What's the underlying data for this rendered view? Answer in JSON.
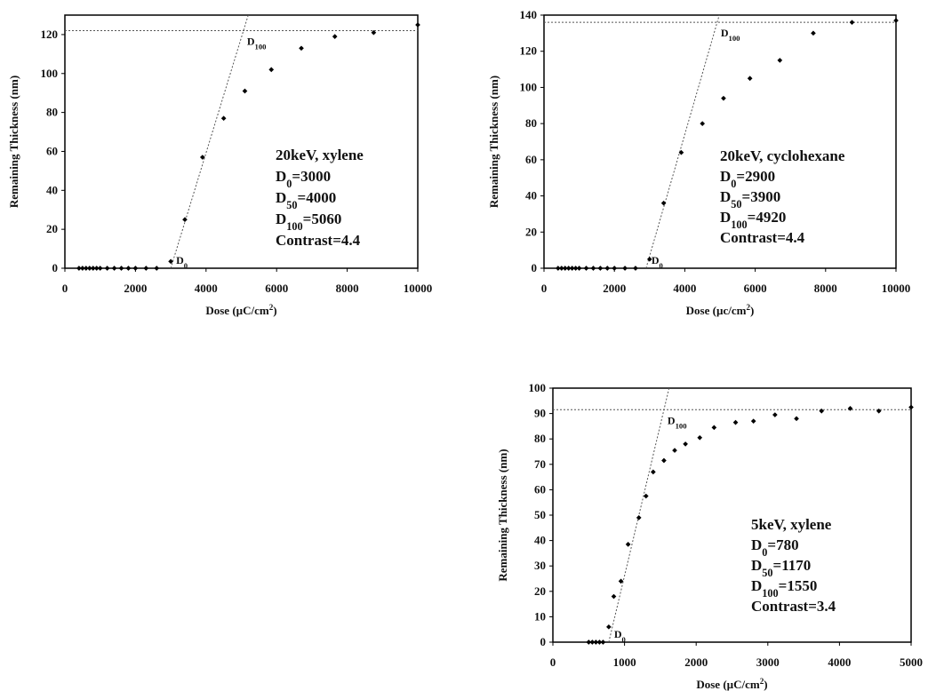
{
  "chart_data": [
    {
      "type": "scatter",
      "xlabel": "Dose (µC/cm²)",
      "ylabel": "Remaining Thickness (nm)",
      "xlim": [
        0,
        10000
      ],
      "ylim": [
        0,
        130
      ],
      "xticks": [
        0,
        2000,
        4000,
        6000,
        8000,
        10000
      ],
      "yticks": [
        0,
        20,
        40,
        60,
        80,
        100,
        120
      ],
      "x": [
        400,
        500,
        600,
        700,
        800,
        900,
        1000,
        1200,
        1400,
        1600,
        1800,
        2000,
        2300,
        2600,
        3000,
        3400,
        3900,
        4500,
        5100,
        5850,
        6700,
        7650,
        8750,
        10000
      ],
      "y": [
        0,
        0,
        0,
        0,
        0,
        0,
        0,
        0,
        0,
        0,
        0,
        0,
        0,
        0,
        3.5,
        25,
        57,
        77,
        91,
        102,
        113,
        119,
        121,
        125
      ],
      "annotations": [
        "20keV, xylene",
        "D0=3000",
        "D50=4000",
        "D100=5060",
        "Contrast=4.4"
      ],
      "d0_label": "D0",
      "d100_label": "D100",
      "fit_line": {
        "x0": 3000,
        "x100": 5060,
        "plateau": 122
      }
    },
    {
      "type": "scatter",
      "xlabel": "Dose (µc/cm²)",
      "ylabel": "Remaining Thickness (nm)",
      "xlim": [
        0,
        10000
      ],
      "ylim": [
        0,
        140
      ],
      "xticks": [
        0,
        2000,
        4000,
        6000,
        8000,
        10000
      ],
      "yticks": [
        0,
        20,
        40,
        60,
        80,
        100,
        120,
        140
      ],
      "x": [
        400,
        500,
        600,
        700,
        800,
        900,
        1000,
        1200,
        1400,
        1600,
        1800,
        2000,
        2300,
        2600,
        3000,
        3400,
        3900,
        4500,
        5100,
        5850,
        6700,
        7650,
        8750,
        10000
      ],
      "y": [
        0,
        0,
        0,
        0,
        0,
        0,
        0,
        0,
        0,
        0,
        0,
        0,
        0,
        0,
        5,
        36,
        64,
        80,
        94,
        105,
        115,
        130,
        136,
        137
      ],
      "annotations": [
        "20keV, cyclohexane",
        "D0=2900",
        "D50=3900",
        "D100=4920",
        "Contrast=4.4"
      ],
      "d0_label": "D0",
      "d100_label": "D100",
      "fit_line": {
        "x0": 2900,
        "x100": 4920,
        "plateau": 136
      }
    },
    {
      "type": "scatter",
      "xlabel": "Dose (µC/cm²)",
      "ylabel": "Remaining Thickness (nm)",
      "xlim": [
        0,
        5000
      ],
      "ylim": [
        0,
        100
      ],
      "xticks": [
        0,
        1000,
        2000,
        3000,
        4000,
        5000
      ],
      "yticks": [
        0,
        10,
        20,
        30,
        40,
        50,
        60,
        70,
        80,
        90,
        100
      ],
      "x": [
        500,
        550,
        600,
        650,
        700,
        780,
        850,
        950,
        1050,
        1200,
        1300,
        1400,
        1550,
        1700,
        1850,
        2050,
        2250,
        2550,
        2800,
        3100,
        3400,
        3750,
        4150,
        4550,
        5000
      ],
      "y": [
        0,
        0,
        0,
        0,
        0,
        6,
        18,
        24,
        38.5,
        49,
        57.5,
        67,
        71.5,
        75.5,
        78,
        80.5,
        84.5,
        86.5,
        87,
        89.5,
        88,
        91,
        92,
        91,
        92.5
      ],
      "annotations": [
        "5keV, xylene",
        "D0=780",
        "D50=1170",
        "D100=1550",
        "Contrast=3.4"
      ],
      "d0_label": "D0",
      "d100_label": "D100",
      "fit_line": {
        "x0": 780,
        "x100": 1550,
        "plateau": 91.5
      }
    }
  ]
}
